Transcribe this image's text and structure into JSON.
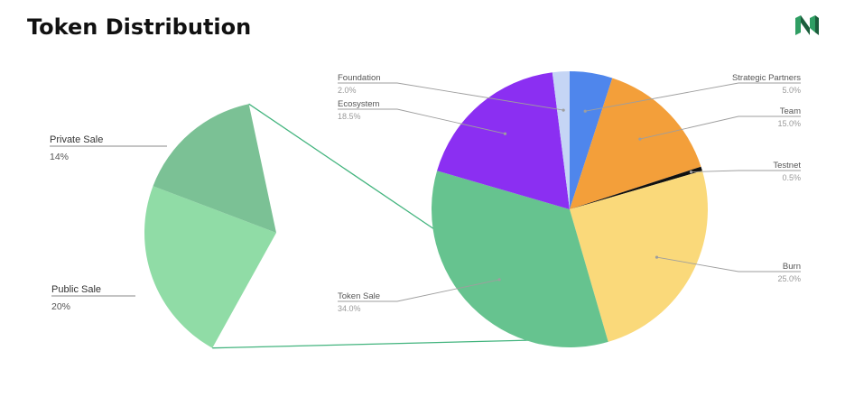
{
  "header": {
    "title": "Token Distribution"
  },
  "colors": {
    "leader": "#9e9e9e",
    "connector": "#43b47e"
  },
  "chart_data": {
    "type": "pie",
    "title": "Token Distribution",
    "main_pie": {
      "slices": [
        {
          "key": "strategic",
          "label": "Strategic Partners",
          "value": 5.0,
          "pct": "5.0%",
          "color": "#4f86ec"
        },
        {
          "key": "team",
          "label": "Team",
          "value": 15.0,
          "pct": "15.0%",
          "color": "#f39f3a"
        },
        {
          "key": "testnet",
          "label": "Testnet",
          "value": 0.5,
          "pct": "0.5%",
          "color": "#111111"
        },
        {
          "key": "burn",
          "label": "Burn",
          "value": 25.0,
          "pct": "25.0%",
          "color": "#fad97a"
        },
        {
          "key": "tokensale",
          "label": "Token Sale",
          "value": 34.0,
          "pct": "34.0%",
          "color": "#66c38f"
        },
        {
          "key": "ecosystem",
          "label": "Ecosystem",
          "value": 18.5,
          "pct": "18.5%",
          "color": "#8b2ff2"
        },
        {
          "key": "foundation",
          "label": "Foundation",
          "value": 2.0,
          "pct": "2.0%",
          "color": "#c5d5f5"
        }
      ]
    },
    "breakdown": {
      "parent": "Token Sale",
      "slices": [
        {
          "key": "private",
          "label": "Private Sale",
          "value": 14,
          "pct": "14%",
          "color": "#7bc195"
        },
        {
          "key": "public",
          "label": "Public Sale",
          "value": 20,
          "pct": "20%",
          "color": "#90dca6"
        }
      ]
    }
  }
}
